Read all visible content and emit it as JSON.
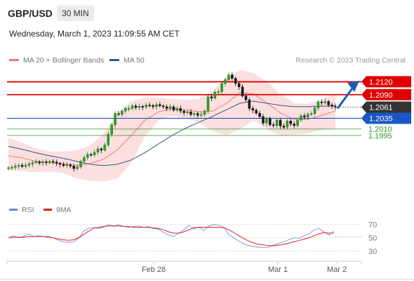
{
  "header": {
    "symbol": "GBP/USD",
    "timeframe": "30 MIN",
    "datetime": "Wednesday, March 1, 2023 11:09:55 AM CET"
  },
  "legend": {
    "bollinger_label": "MA 20 + Bollinger Bands",
    "ma50_label": "MA 50",
    "credit": "Research © 2023 Trading Central",
    "rsi_label": "RSI",
    "rsi_ma_label": "9MA"
  },
  "colors": {
    "resistance": "#e00000",
    "pivot": "#1a56c4",
    "support": "#2a9a2a",
    "current": "#333333",
    "bollinger_fill": "#fcdcdc",
    "bollinger_line": "#f07a7a",
    "ma50": "#33558c",
    "rsi": "#6688dd",
    "rsi_ma": "#e02020",
    "arrow": "#1a5fb4"
  },
  "chart_data": [
    {
      "type": "candlestick",
      "title": "GBP/USD",
      "timeframe": "30 MIN",
      "ylim": [
        1.182,
        1.2155
      ],
      "x_tick_labels": [
        "Feb 28",
        "Mar 1",
        "Mar 2"
      ],
      "levels": [
        {
          "label": "1.2120",
          "value": 1.212,
          "kind": "resistance"
        },
        {
          "label": "1.2090",
          "value": 1.209,
          "kind": "resistance"
        },
        {
          "label": "1.2061",
          "value": 1.2061,
          "kind": "current"
        },
        {
          "label": "1.2035",
          "value": 1.2035,
          "kind": "pivot"
        },
        {
          "label": "1.2010",
          "value": 1.201,
          "kind": "support"
        },
        {
          "label": "1.1995",
          "value": 1.1995,
          "kind": "support"
        }
      ],
      "close_series": [
        1.192,
        1.1921,
        1.1924,
        1.1926,
        1.1923,
        1.1926,
        1.1929,
        1.1932,
        1.1934,
        1.1931,
        1.1934,
        1.1932,
        1.1935,
        1.1933,
        1.193,
        1.1928,
        1.1925,
        1.1927,
        1.1924,
        1.1918,
        1.1922,
        1.1935,
        1.1944,
        1.1951,
        1.195,
        1.1956,
        1.1964,
        1.1961,
        1.1973,
        1.1998,
        1.202,
        1.2046,
        1.2044,
        1.2052,
        1.2058,
        1.2058,
        1.2064,
        1.206,
        1.2063,
        1.2061,
        1.2066,
        1.2065,
        1.2062,
        1.2067,
        1.2064,
        1.2062,
        1.2058,
        1.2062,
        1.2054,
        1.2058,
        1.2052,
        1.2048,
        1.205,
        1.2044,
        1.2046,
        1.2042,
        1.2044,
        1.2052,
        1.2085,
        1.2082,
        1.2096,
        1.2097,
        1.2116,
        1.2125,
        1.2136,
        1.2128,
        1.2116,
        1.2108,
        1.2087,
        1.2078,
        1.2058,
        1.2054,
        1.2047,
        1.2039,
        1.2024,
        1.2034,
        1.202,
        1.2018,
        1.2031,
        1.2017,
        1.2014,
        1.2029,
        1.2022,
        1.2018,
        1.2031,
        1.2041,
        1.2038,
        1.2045,
        1.2046,
        1.2059,
        1.2073,
        1.2071,
        1.2074,
        1.2066,
        1.2063,
        1.2061
      ],
      "bollinger_upper": [
        1.199,
        1.1978,
        1.1965,
        1.1958,
        1.1958,
        1.196,
        1.1972,
        1.2,
        1.2045,
        1.2075,
        1.2083,
        1.2083,
        1.208,
        1.2078,
        1.208,
        1.21,
        1.213,
        1.2148,
        1.214,
        1.212,
        1.209,
        1.207,
        1.2068,
        1.208,
        1.2092
      ],
      "bollinger_lower": [
        1.1915,
        1.1912,
        1.191,
        1.1911,
        1.1908,
        1.1895,
        1.189,
        1.1888,
        1.1895,
        1.193,
        1.1992,
        1.203,
        1.204,
        1.2035,
        1.2025,
        1.2005,
        1.1995,
        1.201,
        1.203,
        1.201,
        1.1995,
        1.1997,
        1.2,
        1.2008,
        1.2012
      ],
      "ma20": [
        1.1948,
        1.1943,
        1.1935,
        1.1932,
        1.193,
        1.1925,
        1.193,
        1.194,
        1.1962,
        1.1995,
        1.203,
        1.205,
        1.2058,
        1.2055,
        1.205,
        1.2052,
        1.207,
        1.2095,
        1.2092,
        1.207,
        1.2047,
        1.2032,
        1.2033,
        1.2042,
        1.2052
      ],
      "ma50": [
        1.197,
        1.1963,
        1.1955,
        1.1948,
        1.1942,
        1.1935,
        1.1928,
        1.1925,
        1.1928,
        1.1938,
        1.1955,
        1.1975,
        1.1995,
        1.2012,
        1.2026,
        1.204,
        1.2055,
        1.207,
        1.2075,
        1.207,
        1.2065,
        1.2062,
        1.2062,
        1.2063,
        1.2064
      ]
    },
    {
      "type": "line",
      "title": "RSI",
      "ylim": [
        25,
        75
      ],
      "y_ticks": [
        70,
        50,
        30
      ],
      "series": [
        {
          "name": "RSI",
          "values": [
            50,
            53,
            50,
            52,
            56,
            52,
            53,
            52,
            52,
            50,
            46,
            44,
            43,
            44,
            49,
            60,
            64,
            66,
            64,
            66,
            70,
            67,
            70,
            67,
            66,
            67,
            68,
            66,
            67,
            64,
            63,
            58,
            54,
            52,
            57,
            62,
            69,
            64,
            66,
            61,
            68,
            70,
            69,
            66,
            55,
            50,
            45,
            41,
            38,
            37,
            36,
            35,
            36,
            39,
            42,
            44,
            47,
            50,
            49,
            53,
            56,
            62,
            64,
            59,
            54,
            60
          ]
        },
        {
          "name": "9MA",
          "values": [
            50,
            51,
            51,
            51,
            52,
            52,
            52,
            52,
            51,
            50,
            48,
            47,
            46,
            47,
            50,
            55,
            60,
            64,
            66,
            67,
            68,
            68,
            68,
            67,
            67,
            66,
            66,
            66,
            66,
            65,
            64,
            62,
            59,
            57,
            57,
            59,
            62,
            65,
            66,
            66,
            66,
            66,
            66,
            65,
            62,
            58,
            53,
            49,
            45,
            42,
            40,
            39,
            38,
            38,
            39,
            40,
            42,
            44,
            46,
            48,
            50,
            53,
            56,
            58,
            57,
            57
          ]
        }
      ]
    }
  ]
}
